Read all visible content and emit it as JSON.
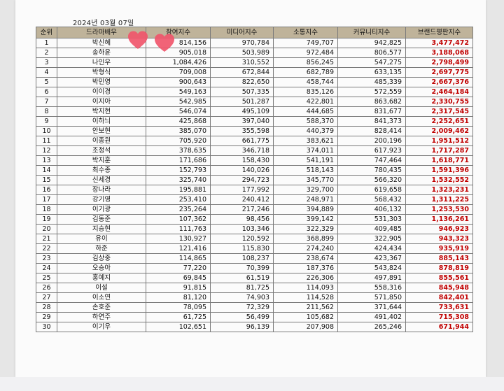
{
  "report": {
    "date": "2024년 03월 07일",
    "headers": [
      "순위",
      "드라마배우",
      "참여지수",
      "미디어지수",
      "소통지수",
      "커뮤니티지수",
      "브랜드평판지수"
    ],
    "rows": [
      [
        "1",
        "박신혜",
        "814,156",
        "970,784",
        "749,707",
        "942,825",
        "3,477,472"
      ],
      [
        "2",
        "송하윤",
        "905,018",
        "503,989",
        "972,484",
        "806,577",
        "3,188,068"
      ],
      [
        "3",
        "나인우",
        "1,084,426",
        "310,552",
        "856,245",
        "547,275",
        "2,798,499"
      ],
      [
        "4",
        "박형식",
        "709,008",
        "672,844",
        "682,789",
        "633,135",
        "2,697,775"
      ],
      [
        "5",
        "박민영",
        "900,643",
        "822,650",
        "458,744",
        "485,339",
        "2,667,376"
      ],
      [
        "6",
        "이이경",
        "549,163",
        "507,335",
        "835,126",
        "572,559",
        "2,464,184"
      ],
      [
        "7",
        "이지아",
        "542,985",
        "501,287",
        "422,801",
        "863,682",
        "2,330,755"
      ],
      [
        "8",
        "박지현",
        "546,074",
        "495,109",
        "444,685",
        "831,677",
        "2,317,545"
      ],
      [
        "9",
        "이하늬",
        "425,868",
        "397,040",
        "588,370",
        "841,373",
        "2,252,651"
      ],
      [
        "10",
        "안보현",
        "385,070",
        "355,598",
        "440,379",
        "828,414",
        "2,009,462"
      ],
      [
        "11",
        "이종원",
        "705,920",
        "661,775",
        "383,621",
        "200,196",
        "1,951,512"
      ],
      [
        "12",
        "조정석",
        "378,635",
        "346,718",
        "374,011",
        "617,923",
        "1,717,287"
      ],
      [
        "13",
        "박지훈",
        "171,686",
        "158,430",
        "541,191",
        "747,464",
        "1,618,771"
      ],
      [
        "14",
        "최수종",
        "152,793",
        "140,026",
        "518,143",
        "780,435",
        "1,591,396"
      ],
      [
        "15",
        "신세경",
        "325,740",
        "294,723",
        "345,770",
        "566,320",
        "1,532,552"
      ],
      [
        "16",
        "장나라",
        "195,881",
        "177,992",
        "329,700",
        "619,658",
        "1,323,231"
      ],
      [
        "17",
        "강기영",
        "253,410",
        "240,412",
        "248,971",
        "568,432",
        "1,311,225"
      ],
      [
        "18",
        "이기광",
        "235,264",
        "217,246",
        "394,889",
        "406,132",
        "1,253,530"
      ],
      [
        "19",
        "김동준",
        "107,362",
        "98,456",
        "399,142",
        "531,303",
        "1,136,261"
      ],
      [
        "20",
        "지승현",
        "111,763",
        "103,346",
        "322,329",
        "409,485",
        "946,923"
      ],
      [
        "21",
        "유이",
        "130,927",
        "120,592",
        "368,899",
        "322,905",
        "943,323"
      ],
      [
        "22",
        "하준",
        "121,416",
        "115,830",
        "274,240",
        "424,434",
        "935,919"
      ],
      [
        "23",
        "김상중",
        "114,865",
        "108,237",
        "238,674",
        "423,367",
        "885,143"
      ],
      [
        "24",
        "오승아",
        "77,220",
        "70,399",
        "187,376",
        "543,824",
        "878,819"
      ],
      [
        "25",
        "홍예지",
        "69,845",
        "61,519",
        "226,306",
        "497,891",
        "855,561"
      ],
      [
        "26",
        "이설",
        "91,815",
        "81,725",
        "114,093",
        "558,316",
        "845,948"
      ],
      [
        "27",
        "이소연",
        "81,120",
        "74,903",
        "114,528",
        "571,850",
        "842,401"
      ],
      [
        "28",
        "손호준",
        "78,095",
        "72,329",
        "211,562",
        "371,644",
        "733,631"
      ],
      [
        "29",
        "하연주",
        "61,725",
        "56,499",
        "105,682",
        "491,402",
        "715,308"
      ],
      [
        "30",
        "이기우",
        "102,651",
        "96,139",
        "207,908",
        "265,246",
        "671,944"
      ]
    ]
  }
}
